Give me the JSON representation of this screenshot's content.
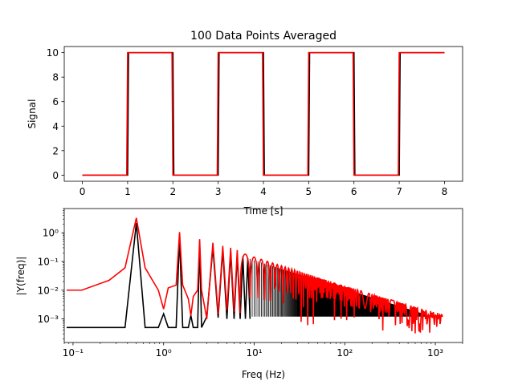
{
  "chart_data": [
    {
      "type": "line",
      "title": "100 Data Points Averaged",
      "xlabel": "Time [s]",
      "ylabel": "Signal",
      "xlim": [
        -0.4,
        8.4
      ],
      "ylim": [
        -0.5,
        10.5
      ],
      "xscale": "linear",
      "yscale": "linear",
      "x_ticks": [
        0,
        1,
        2,
        3,
        4,
        5,
        6,
        7,
        8
      ],
      "y_ticks": [
        0,
        2,
        4,
        6,
        8,
        10
      ],
      "x_tick_labels": [
        "0",
        "1",
        "2",
        "3",
        "4",
        "5",
        "6",
        "7",
        "8"
      ],
      "y_tick_labels": [
        "0",
        "2",
        "4",
        "6",
        "8",
        "10"
      ],
      "grid": false,
      "series": [
        {
          "color": "#000000",
          "x": [
            0,
            1.0,
            1.02,
            2.0,
            2.02,
            3.0,
            3.02,
            4.0,
            4.02,
            5.0,
            5.02,
            6.0,
            6.02,
            7.0,
            7.02,
            8.0
          ],
          "y": [
            0,
            0,
            10,
            10,
            0,
            0,
            10,
            10,
            0,
            0,
            10,
            10,
            0,
            0,
            10,
            10
          ]
        },
        {
          "color": "#ff0000",
          "x": [
            0,
            0.98,
            1.0,
            1.98,
            2.0,
            2.98,
            3.0,
            3.98,
            4.0,
            4.98,
            5.0,
            5.98,
            6.0,
            6.98,
            7.0,
            8.0
          ],
          "y": [
            0,
            0,
            10,
            10,
            0,
            0,
            10,
            10,
            0,
            0,
            10,
            10,
            0,
            0,
            10,
            10
          ]
        }
      ]
    },
    {
      "type": "line",
      "title": "",
      "xlabel": "Freq (Hz)",
      "ylabel": "|Y(freq)|",
      "xlim": [
        0.08,
        2000
      ],
      "ylim": [
        0.00015,
        7
      ],
      "xscale": "log",
      "yscale": "log",
      "x_ticks": [
        0.1,
        1,
        10,
        100,
        1000
      ],
      "y_ticks": [
        0.001,
        0.01,
        0.1,
        1
      ],
      "x_tick_labels": [
        "10⁻¹",
        "10⁰",
        "10¹",
        "10²",
        "10³"
      ],
      "y_tick_labels": [
        "10⁻³",
        "10⁻²",
        "10⁻¹",
        "10⁰"
      ],
      "grid": false,
      "series": [
        {
          "color": "#000000",
          "description_values": "spikes at odd multiples of 0.5 Hz over baseline",
          "x": [
            0.085,
            0.375,
            0.5,
            0.625,
            0.875,
            1.0,
            1.125,
            1.375,
            1.5,
            1.625,
            1.875,
            2.0,
            2.125,
            2.375,
            2.5,
            2.625,
            3.0,
            3.5,
            4.0,
            4.5,
            5.0,
            5.5,
            6.0,
            6.5,
            7.0,
            7.5,
            8.0,
            8.5,
            9.0
          ],
          "y": [
            0.0005,
            0.0005,
            2.2,
            0.0005,
            0.0005,
            0.0015,
            0.0005,
            0.0005,
            0.7,
            0.0005,
            0.0005,
            0.0013,
            0.0005,
            0.0005,
            0.45,
            0.0005,
            0.0012,
            0.3,
            0.0011,
            0.25,
            0.001,
            0.2,
            0.001,
            0.17,
            0.001,
            0.15,
            0.001,
            0.13,
            0.001
          ]
        },
        {
          "color": "#ff0000",
          "x": [
            0.085,
            0.125,
            0.25,
            0.375,
            0.5,
            0.625,
            0.875,
            1.0,
            1.125,
            1.375,
            1.5,
            1.625,
            1.875,
            2.0,
            2.125,
            2.375,
            2.5,
            2.625,
            3.0,
            3.5,
            4.0,
            4.5,
            5.0,
            5.5,
            6.0,
            6.5,
            7.0
          ],
          "y": [
            0.01,
            0.01,
            0.022,
            0.06,
            3.3,
            0.06,
            0.01,
            0.0022,
            0.012,
            0.015,
            1.05,
            0.015,
            0.005,
            0.0013,
            0.006,
            0.01,
            0.6,
            0.01,
            0.001,
            0.45,
            0.0015,
            0.35,
            0.002,
            0.3,
            0.0018,
            0.25,
            0.0016
          ]
        }
      ]
    }
  ]
}
